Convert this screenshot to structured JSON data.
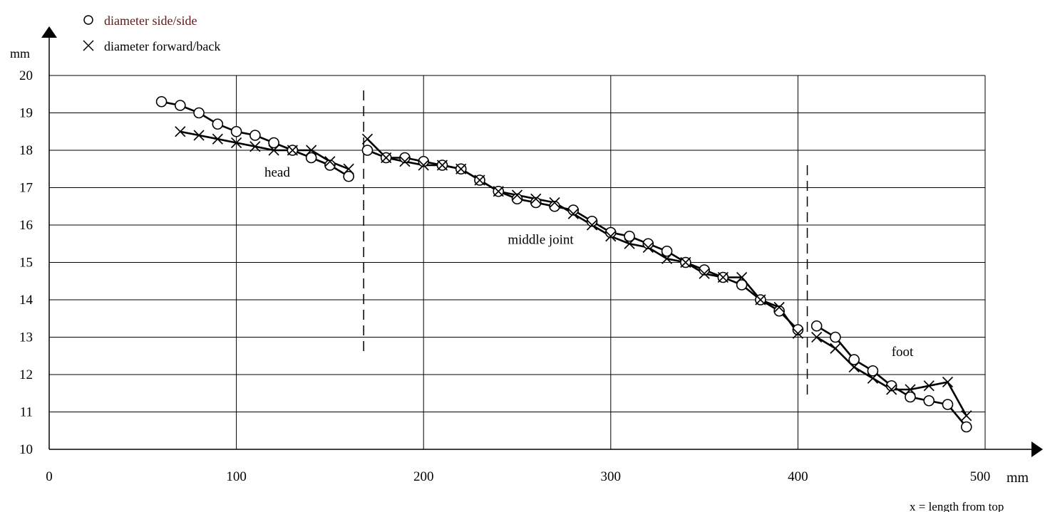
{
  "chart_data": {
    "type": "line",
    "title": "",
    "xlabel": "x = length from top",
    "x_unit": "mm",
    "ylabel": "mm",
    "xlim": [
      0,
      500
    ],
    "ylim": [
      10,
      20
    ],
    "x_ticks": [
      0,
      100,
      200,
      300,
      400,
      500
    ],
    "y_ticks": [
      10,
      11,
      12,
      13,
      14,
      15,
      16,
      17,
      18,
      19,
      20
    ],
    "grid": true,
    "legend_position": "top-left",
    "legend": [
      {
        "symbol": "O",
        "label": "diameter side/side"
      },
      {
        "symbol": "×",
        "label": "diameter forward/back"
      }
    ],
    "separators_x": [
      168,
      405
    ],
    "section_labels": [
      {
        "text": "head",
        "x": 115,
        "y": 17.3
      },
      {
        "text": "middle joint",
        "x": 245,
        "y": 15.5
      },
      {
        "text": "foot",
        "x": 450,
        "y": 12.5
      }
    ],
    "series": [
      {
        "name": "diameter side/side",
        "marker": "circle",
        "segments": [
          {
            "x": [
              60,
              70,
              80,
              90,
              100,
              110,
              120,
              130,
              140,
              150,
              160
            ],
            "y": [
              19.3,
              19.2,
              19.0,
              18.7,
              18.5,
              18.4,
              18.2,
              18.0,
              17.8,
              17.6,
              17.3
            ]
          },
          {
            "x": [
              170,
              180,
              190,
              200,
              210,
              220,
              230,
              240,
              250,
              260,
              270,
              280,
              290,
              300,
              310,
              320,
              330,
              340,
              350,
              360,
              370,
              380,
              390,
              400
            ],
            "y": [
              18.0,
              17.8,
              17.8,
              17.7,
              17.6,
              17.5,
              17.2,
              16.9,
              16.7,
              16.6,
              16.5,
              16.4,
              16.1,
              15.8,
              15.7,
              15.5,
              15.3,
              15.0,
              14.8,
              14.6,
              14.4,
              14.0,
              13.7,
              13.2
            ]
          },
          {
            "x": [
              410,
              420,
              430,
              440,
              450,
              460,
              470,
              480,
              490
            ],
            "y": [
              13.3,
              13.0,
              12.4,
              12.1,
              11.7,
              11.4,
              11.3,
              11.2,
              10.6
            ]
          }
        ]
      },
      {
        "name": "diameter forward/back",
        "marker": "cross",
        "segments": [
          {
            "x": [
              70,
              80,
              90,
              100,
              110,
              120,
              130,
              140,
              150,
              160
            ],
            "y": [
              18.5,
              18.4,
              18.3,
              18.2,
              18.1,
              18.0,
              18.0,
              18.0,
              17.7,
              17.5
            ]
          },
          {
            "x": [
              170,
              180,
              190,
              200,
              210,
              220,
              230,
              240,
              250,
              260,
              270,
              280,
              290,
              300,
              310,
              320,
              330,
              340,
              350,
              360,
              370,
              380,
              390,
              400
            ],
            "y": [
              18.3,
              17.8,
              17.7,
              17.6,
              17.6,
              17.5,
              17.2,
              16.9,
              16.8,
              16.7,
              16.6,
              16.3,
              16.0,
              15.7,
              15.5,
              15.4,
              15.1,
              15.0,
              14.7,
              14.6,
              14.6,
              14.0,
              13.8,
              13.1
            ]
          },
          {
            "x": [
              410,
              420,
              430,
              440,
              450,
              460,
              470,
              480,
              490
            ],
            "y": [
              13.0,
              12.7,
              12.2,
              11.9,
              11.6,
              11.6,
              11.7,
              11.8,
              10.9
            ]
          }
        ]
      }
    ]
  }
}
